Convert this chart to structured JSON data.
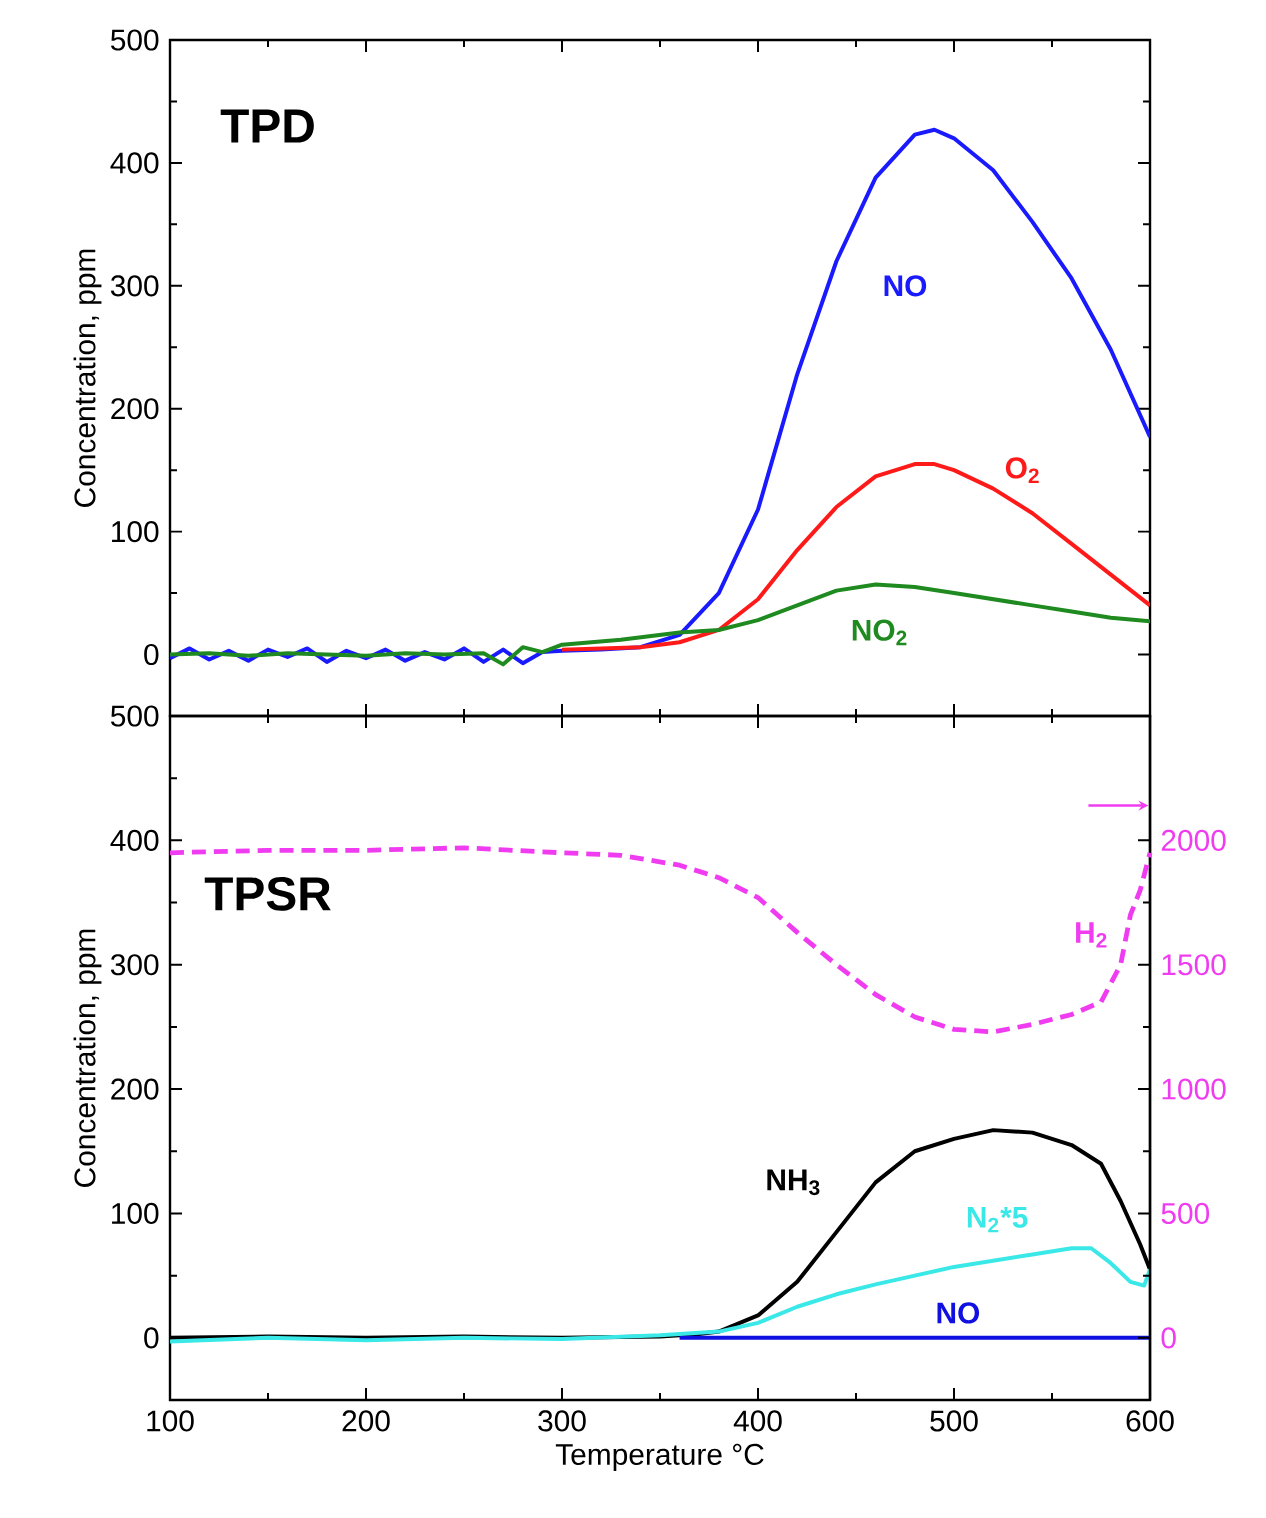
{
  "chart_data": [
    {
      "type": "line",
      "title": "TPD",
      "ylabel": "Concentration, ppm",
      "xlim": [
        100,
        600
      ],
      "ylim": [
        -50,
        500
      ],
      "xticks": [
        100,
        200,
        300,
        400,
        500,
        600
      ],
      "yticks": [
        0,
        100,
        200,
        300,
        400,
        500
      ],
      "tick_labels": "y",
      "grid": false,
      "line_style": "solid",
      "series": [
        {
          "name": "NO",
          "color": "#1a1aff",
          "x": [
            100,
            110,
            120,
            130,
            140,
            150,
            160,
            170,
            180,
            190,
            200,
            210,
            220,
            230,
            240,
            250,
            260,
            270,
            280,
            290,
            300,
            320,
            340,
            360,
            380,
            400,
            420,
            440,
            460,
            480,
            490,
            500,
            520,
            540,
            560,
            580,
            600
          ],
          "values": [
            -3,
            5,
            -4,
            3,
            -5,
            4,
            -2,
            5,
            -6,
            3,
            -3,
            4,
            -5,
            2,
            -4,
            5,
            -6,
            4,
            -7,
            2,
            3,
            4,
            6,
            16,
            50,
            118,
            228,
            320,
            388,
            423,
            427,
            420,
            394,
            352,
            306,
            248,
            177
          ]
        },
        {
          "name": "O$_{2}$",
          "color": "#ff1a1a",
          "x": [
            300,
            320,
            340,
            360,
            380,
            400,
            420,
            440,
            460,
            480,
            490,
            500,
            520,
            540,
            560,
            580,
            600
          ],
          "values": [
            4,
            5,
            6,
            10,
            20,
            45,
            85,
            120,
            145,
            155,
            155,
            150,
            135,
            115,
            90,
            65,
            40
          ]
        },
        {
          "name": "NO$_{2}$",
          "color": "#1f8a1f",
          "x": [
            100,
            120,
            140,
            160,
            180,
            200,
            220,
            240,
            260,
            270,
            280,
            290,
            300,
            330,
            360,
            380,
            400,
            420,
            440,
            460,
            480,
            500,
            520,
            540,
            560,
            580,
            600
          ],
          "values": [
            0,
            1,
            -1,
            1,
            0,
            -1,
            1,
            0,
            1,
            -8,
            6,
            2,
            8,
            12,
            18,
            20,
            28,
            40,
            52,
            57,
            55,
            50,
            45,
            40,
            35,
            30,
            27
          ]
        }
      ]
    },
    {
      "type": "line",
      "title": "TPSR",
      "xlabel": "Temperature °C",
      "ylabel": "Concentration, ppm",
      "xlim": [
        100,
        600
      ],
      "ylim": [
        -50,
        500
      ],
      "y2lim": [
        -250,
        2500
      ],
      "xticks": [
        100,
        200,
        300,
        400,
        500,
        600
      ],
      "yticks": [
        0,
        100,
        200,
        300,
        400,
        500
      ],
      "y2ticks": [
        0,
        500,
        1000,
        1500,
        2000
      ],
      "grid": false,
      "series": [
        {
          "name": "H$_{2}$",
          "color": "#f03cf0",
          "axis": "y2",
          "line_style": "dashed",
          "x": [
            100,
            150,
            200,
            250,
            300,
            330,
            360,
            380,
            400,
            420,
            440,
            460,
            480,
            500,
            520,
            540,
            560,
            575,
            585,
            590,
            595,
            600
          ],
          "values": [
            1950,
            1960,
            1960,
            1970,
            1950,
            1940,
            1900,
            1850,
            1770,
            1630,
            1500,
            1380,
            1290,
            1240,
            1230,
            1260,
            1300,
            1350,
            1500,
            1700,
            1800,
            1950
          ]
        },
        {
          "name": "NH$_{3}$",
          "color": "#000000",
          "line_style": "solid",
          "x": [
            100,
            150,
            200,
            250,
            300,
            350,
            370,
            380,
            400,
            420,
            440,
            460,
            480,
            500,
            520,
            540,
            560,
            575,
            585,
            595,
            600
          ],
          "values": [
            0,
            1,
            0,
            1,
            0,
            1,
            3,
            5,
            18,
            45,
            85,
            125,
            150,
            160,
            167,
            165,
            155,
            140,
            110,
            75,
            55
          ]
        },
        {
          "name": "NO",
          "color": "#1010e0",
          "line_style": "solid",
          "x": [
            360,
            400,
            450,
            500,
            550,
            600
          ],
          "values": [
            0,
            0,
            0,
            0,
            0,
            0
          ]
        },
        {
          "name": "N$_{2}$*5",
          "color": "#3ae8e8",
          "line_style": "solid",
          "x": [
            100,
            150,
            200,
            250,
            300,
            350,
            380,
            400,
            420,
            440,
            460,
            480,
            500,
            520,
            540,
            560,
            570,
            580,
            590,
            597,
            600
          ],
          "values": [
            -3,
            0,
            -2,
            0,
            -1,
            2,
            5,
            12,
            25,
            35,
            43,
            50,
            57,
            62,
            67,
            72,
            72,
            60,
            45,
            42,
            55
          ]
        }
      ]
    }
  ]
}
